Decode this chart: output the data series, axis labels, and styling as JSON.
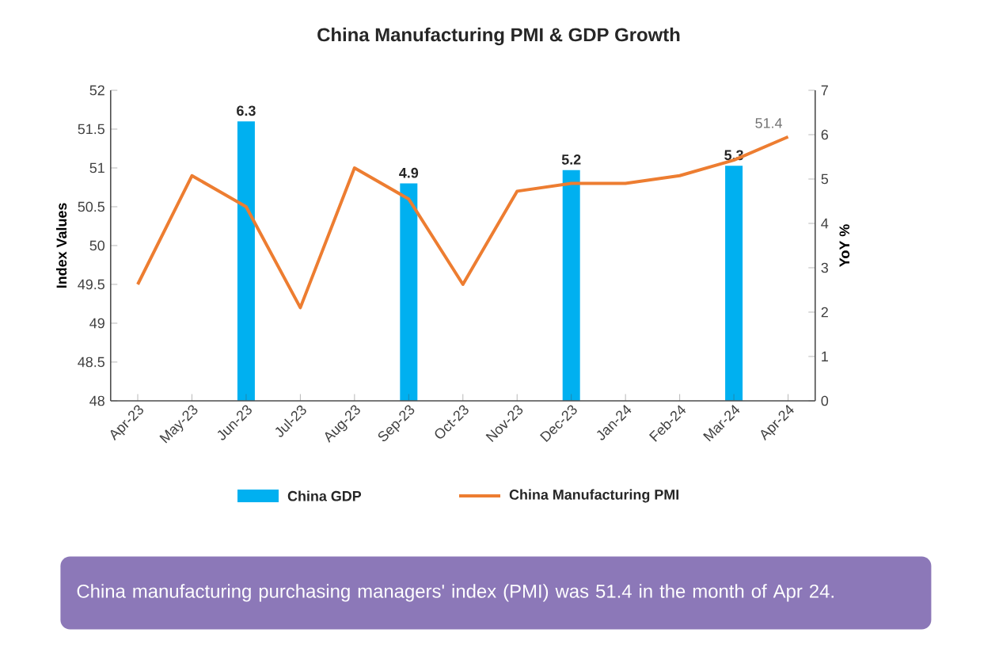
{
  "chart_data": {
    "type": "bar",
    "title": "China Manufacturing PMI & GDP Growth",
    "categories": [
      "Apr-23",
      "May-23",
      "Jun-23",
      "Jul-23",
      "Aug-23",
      "Sep-23",
      "Oct-23",
      "Nov-23",
      "Dec-23",
      "Jan-24",
      "Feb-24",
      "Mar-24",
      "Apr-24"
    ],
    "series": [
      {
        "name": "China GDP",
        "axis": "y2",
        "color": "#00b0f0",
        "values": [
          null,
          null,
          6.3,
          null,
          null,
          4.9,
          null,
          null,
          5.2,
          null,
          null,
          5.3,
          null
        ],
        "value_labels": [
          null,
          null,
          "6.3",
          null,
          null,
          "4.9",
          null,
          null,
          "5.2",
          null,
          null,
          "5.3",
          null
        ]
      },
      {
        "name": "China Manufacturing PMI",
        "type": "line",
        "color": "#ed7d31",
        "values": [
          49.5,
          50.9,
          50.5,
          49.2,
          51.0,
          50.6,
          49.5,
          50.7,
          50.8,
          50.8,
          50.9,
          51.1,
          51.4
        ],
        "value_labels": [
          null,
          null,
          null,
          null,
          null,
          null,
          null,
          null,
          null,
          null,
          null,
          null,
          "51.4"
        ]
      }
    ],
    "ylabel": "Index Values",
    "y2label": "YoY %",
    "ylim": [
      48,
      52
    ],
    "yticks": [
      48,
      48.5,
      49,
      49.5,
      50,
      50.5,
      51,
      51.5,
      52
    ],
    "y2lim": [
      0,
      7
    ],
    "y2ticks": [
      0,
      1,
      2,
      3,
      4,
      5,
      6,
      7
    ],
    "legend": "bottom",
    "annotations": [
      "China manufacturing purchasing managers' index (PMI) was 51.4 in the month of Apr 24."
    ]
  }
}
